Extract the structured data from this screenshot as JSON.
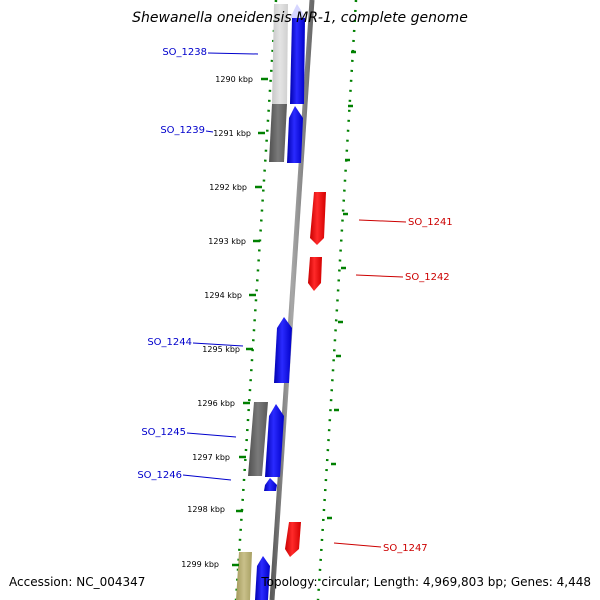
{
  "title": "Shewanella oneidensis MR-1, complete genome",
  "footer": {
    "accession": "Accession: NC_004347",
    "topology": "Topology: circular; Length: 4,969,803 bp; Genes: 4,448"
  },
  "colors": {
    "forward": "#0000ff",
    "reverse": "#ff0000",
    "backbone": "#808080",
    "ticks": "#008000",
    "grey_feature": "#666666",
    "olive_feature": "#b5ab6e"
  },
  "ticks": [
    {
      "kbp": 1290,
      "label": "1290 kbp"
    },
    {
      "kbp": 1291,
      "label": "1291 kbp"
    },
    {
      "kbp": 1292,
      "label": "1292 kbp"
    },
    {
      "kbp": 1293,
      "label": "1293 kbp"
    },
    {
      "kbp": 1294,
      "label": "1294 kbp"
    },
    {
      "kbp": 1295,
      "label": "1295 kbp"
    },
    {
      "kbp": 1296,
      "label": "1296 kbp"
    },
    {
      "kbp": 1297,
      "label": "1297 kbp"
    },
    {
      "kbp": 1298,
      "label": "1298 kbp"
    },
    {
      "kbp": 1299,
      "label": "1299 kbp"
    }
  ],
  "genes": [
    {
      "name": "SO_1238",
      "strand": "forward"
    },
    {
      "name": "SO_1239",
      "strand": "forward"
    },
    {
      "name": "SO_1241",
      "strand": "reverse"
    },
    {
      "name": "SO_1242",
      "strand": "reverse"
    },
    {
      "name": "SO_1244",
      "strand": "forward"
    },
    {
      "name": "SO_1245",
      "strand": "forward"
    },
    {
      "name": "SO_1246",
      "strand": "forward"
    },
    {
      "name": "SO_1247",
      "strand": "reverse"
    }
  ]
}
